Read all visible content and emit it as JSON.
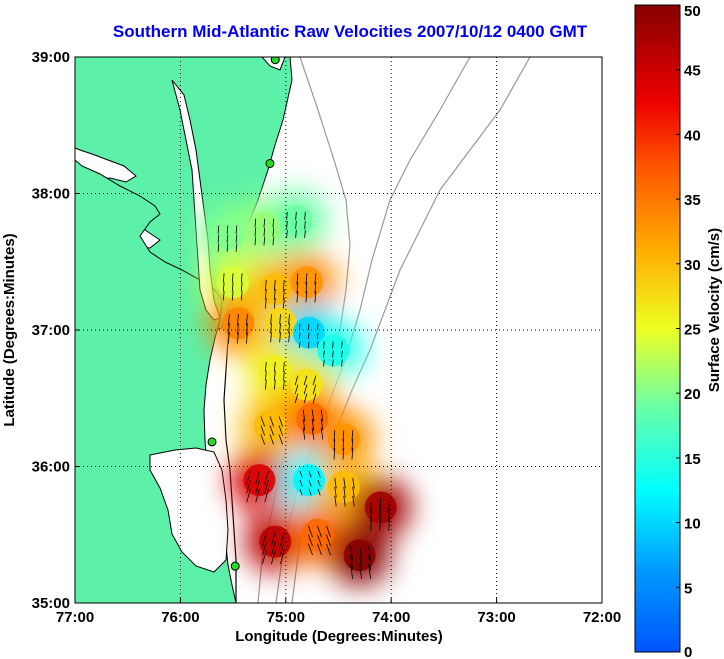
{
  "chart_data": {
    "type": "heatmap",
    "title": "Southern Mid-Atlantic Raw Velocities 2007/10/12 0400 GMT",
    "xlabel": "Longitude (Degrees:Minutes)",
    "ylabel": "Latitude (Degrees:Minutes)",
    "xlim": [
      -77,
      -72
    ],
    "ylim": [
      35,
      39
    ],
    "x_ticks": [
      -77,
      -76,
      -75,
      -74,
      -73,
      -72
    ],
    "x_tick_labels": [
      "77:00",
      "76:00",
      "75:00",
      "74:00",
      "73:00",
      "72:00"
    ],
    "y_ticks": [
      35,
      36,
      37,
      38,
      39
    ],
    "y_tick_labels": [
      "35:00",
      "36:00",
      "37:00",
      "38:00",
      "39:00"
    ],
    "grid": true,
    "colorbar": {
      "label": "Surface Velocity (cm/s)",
      "min": 0,
      "max": 50,
      "ticks": [
        0,
        5,
        10,
        15,
        20,
        25,
        30,
        35,
        40,
        45,
        50
      ],
      "tick_labels": [
        "0",
        "5",
        "10",
        "15",
        "20",
        "25",
        "30",
        "35",
        "40",
        "45",
        "50"
      ]
    },
    "colors": {
      "land": "#5cf0a8",
      "ocean": "#ffffff",
      "coast": "#000000",
      "bathymetry": "#999999",
      "station": "#22dd22"
    },
    "velocity_field": [
      {
        "lon": -75.55,
        "lat": 37.7,
        "speed": 20
      },
      {
        "lon": -75.2,
        "lat": 37.75,
        "speed": 21
      },
      {
        "lon": -74.9,
        "lat": 37.8,
        "speed": 19
      },
      {
        "lon": -75.5,
        "lat": 37.35,
        "speed": 24
      },
      {
        "lon": -75.1,
        "lat": 37.3,
        "speed": 30
      },
      {
        "lon": -74.8,
        "lat": 37.35,
        "speed": 33
      },
      {
        "lon": -75.45,
        "lat": 37.05,
        "speed": 34
      },
      {
        "lon": -75.05,
        "lat": 37.05,
        "speed": 28
      },
      {
        "lon": -74.78,
        "lat": 36.98,
        "speed": 10
      },
      {
        "lon": -74.55,
        "lat": 36.85,
        "speed": 14
      },
      {
        "lon": -75.1,
        "lat": 36.7,
        "speed": 26
      },
      {
        "lon": -74.8,
        "lat": 36.6,
        "speed": 27
      },
      {
        "lon": -75.15,
        "lat": 36.3,
        "speed": 30
      },
      {
        "lon": -74.75,
        "lat": 36.35,
        "speed": 36
      },
      {
        "lon": -74.45,
        "lat": 36.2,
        "speed": 33
      },
      {
        "lon": -75.25,
        "lat": 35.9,
        "speed": 44
      },
      {
        "lon": -74.78,
        "lat": 35.9,
        "speed": 12
      },
      {
        "lon": -74.45,
        "lat": 35.85,
        "speed": 30
      },
      {
        "lon": -74.1,
        "lat": 35.7,
        "speed": 48
      },
      {
        "lon": -75.1,
        "lat": 35.45,
        "speed": 46
      },
      {
        "lon": -74.7,
        "lat": 35.5,
        "speed": 36
      },
      {
        "lon": -74.3,
        "lat": 35.35,
        "speed": 50
      }
    ],
    "stations": [
      {
        "lon": -75.1,
        "lat": 38.98
      },
      {
        "lon": -75.15,
        "lat": 38.22
      },
      {
        "lon": -75.7,
        "lat": 36.18
      },
      {
        "lon": -75.48,
        "lat": 35.27
      }
    ]
  }
}
